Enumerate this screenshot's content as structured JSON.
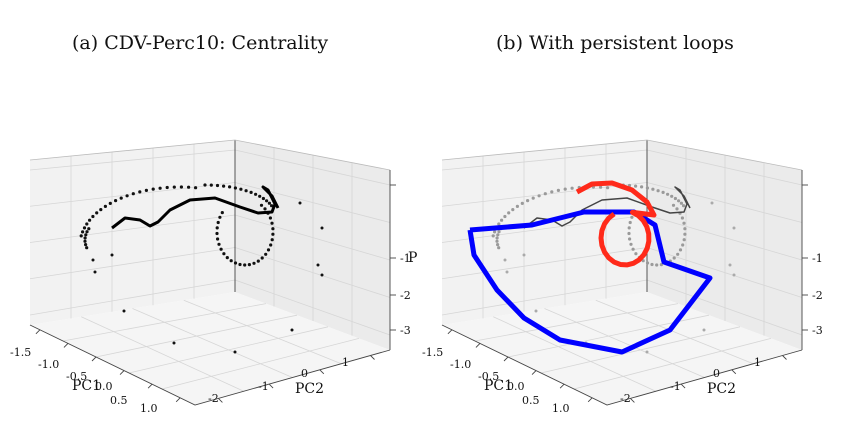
{
  "chart_data": [
    {
      "type": "scatter",
      "title": "(a) CDV-Perc10: Centrality",
      "xlabel": "PC1",
      "ylabel": "PC2",
      "zlabel": "P",
      "x_ticks": [
        "-1.5",
        "-1.0",
        "-0.5",
        "0.0",
        "0.5",
        "1.0"
      ],
      "y_ticks": [
        "-2",
        "-1",
        "0",
        "1"
      ],
      "z_ticks": [
        "-1",
        "-2",
        "-3"
      ],
      "grid": true,
      "point_color": "#000000"
    },
    {
      "type": "scatter",
      "title": "(b) With persistent loops",
      "xlabel": "PC1",
      "ylabel": "PC2",
      "zlabel": "",
      "x_ticks": [
        "-1.5",
        "-1.0",
        "-0.5",
        "0.0",
        "0.5",
        "1.0"
      ],
      "y_ticks": [
        "-2",
        "-1",
        "0",
        "1"
      ],
      "z_ticks": [
        "-1",
        "-2",
        "-3"
      ],
      "grid": true,
      "point_color": "#555555",
      "loops": [
        {
          "color": "#0000ff"
        },
        {
          "color": "#ff2a1a"
        }
      ]
    }
  ]
}
